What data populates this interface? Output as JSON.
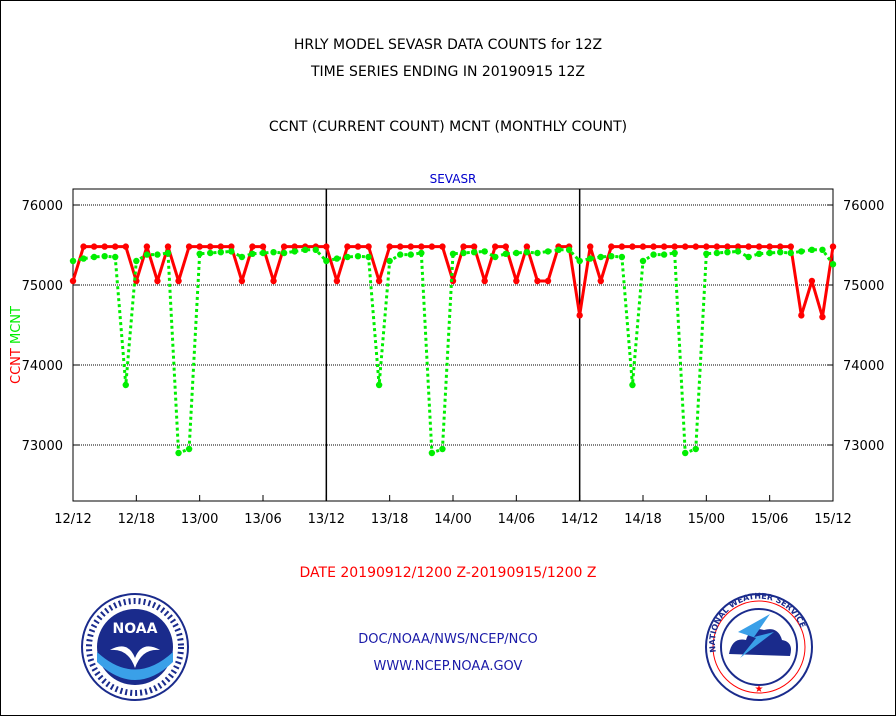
{
  "header": {
    "title_line1": "HRLY MODEL SEVASR DATA COUNTS for 12Z",
    "title_line2": "TIME SERIES ENDING IN 20190915 12Z",
    "subtitle": "CCNT (CURRENT COUNT) MCNT (MONTHLY COUNT)"
  },
  "colors": {
    "ccnt": "#ff0000",
    "mcnt": "#00ee00",
    "series_label": "#0000cc",
    "credits": "#1a1aa8"
  },
  "chart_data": {
    "type": "line",
    "title": "SEVASR",
    "ylabel_ccnt": "CCNT",
    "ylabel_mcnt": "MCNT",
    "ylim": [
      72300,
      76200
    ],
    "yticks": [
      "73000",
      "74000",
      "75000",
      "76000"
    ],
    "xlim": [
      0,
      72
    ],
    "x_ticks": [
      {
        "x": 0,
        "label": "12/12"
      },
      {
        "x": 6,
        "label": "12/18"
      },
      {
        "x": 12,
        "label": "13/00"
      },
      {
        "x": 18,
        "label": "13/06"
      },
      {
        "x": 24,
        "label": "13/12"
      },
      {
        "x": 30,
        "label": "13/18"
      },
      {
        "x": 36,
        "label": "14/00"
      },
      {
        "x": 42,
        "label": "14/06"
      },
      {
        "x": 48,
        "label": "14/12"
      },
      {
        "x": 54,
        "label": "14/18"
      },
      {
        "x": 60,
        "label": "15/00"
      },
      {
        "x": 66,
        "label": "15/06"
      },
      {
        "x": 72,
        "label": "15/12"
      }
    ],
    "panel_dividers": [
      24,
      48
    ],
    "grid_y": [
      73000,
      74000,
      75000,
      76000
    ],
    "series": [
      {
        "name": "CCNT",
        "color": "#ff0000",
        "values": [
          75050,
          75480,
          75480,
          75480,
          75480,
          75480,
          75050,
          75480,
          75050,
          75480,
          75050,
          75480,
          75480,
          75480,
          75480,
          75480,
          75050,
          75480,
          75480,
          75050,
          75480,
          75480,
          75480,
          75480,
          75480,
          75050,
          75480,
          75480,
          75480,
          75050,
          75480,
          75480,
          75480,
          75480,
          75480,
          75480,
          75050,
          75480,
          75480,
          75050,
          75480,
          75480,
          75050,
          75480,
          75050,
          75050,
          75480,
          75480,
          74620,
          75480,
          75050,
          75480,
          75480,
          75480,
          75480,
          75480,
          75480,
          75480,
          75480,
          75480,
          75480,
          75480,
          75480,
          75480,
          75480,
          75480,
          75480,
          75480,
          75480,
          74620,
          75050,
          74600,
          75480
        ]
      },
      {
        "name": "MCNT",
        "color": "#00ee00",
        "values": [
          75300,
          75330,
          75350,
          75360,
          75350,
          73750,
          75300,
          75380,
          75380,
          75400,
          72900,
          72950,
          75390,
          75400,
          75410,
          75420,
          75350,
          75390,
          75400,
          75410,
          75400,
          75420,
          75440,
          75440,
          75300,
          75330,
          75350,
          75360,
          75350,
          73750,
          75300,
          75380,
          75380,
          75400,
          72900,
          72950,
          75390,
          75400,
          75410,
          75420,
          75350,
          75390,
          75400,
          75410,
          75400,
          75420,
          75440,
          75440,
          75300,
          75330,
          75350,
          75360,
          75350,
          73750,
          75300,
          75380,
          75380,
          75400,
          72900,
          72950,
          75390,
          75400,
          75410,
          75420,
          75350,
          75390,
          75400,
          75410,
          75400,
          75420,
          75440,
          75440,
          75260
        ]
      }
    ]
  },
  "footer": {
    "date_range": "DATE 20190912/1200 Z-20190915/1200 Z",
    "credit_line1": "DOC/NOAA/NWS/NCEP/NCO",
    "credit_line2": "WWW.NCEP.NOAA.GOV"
  },
  "logos": {
    "noaa_text": "NOAA",
    "nws_text": "NATIONAL WEATHER SERVICE"
  }
}
